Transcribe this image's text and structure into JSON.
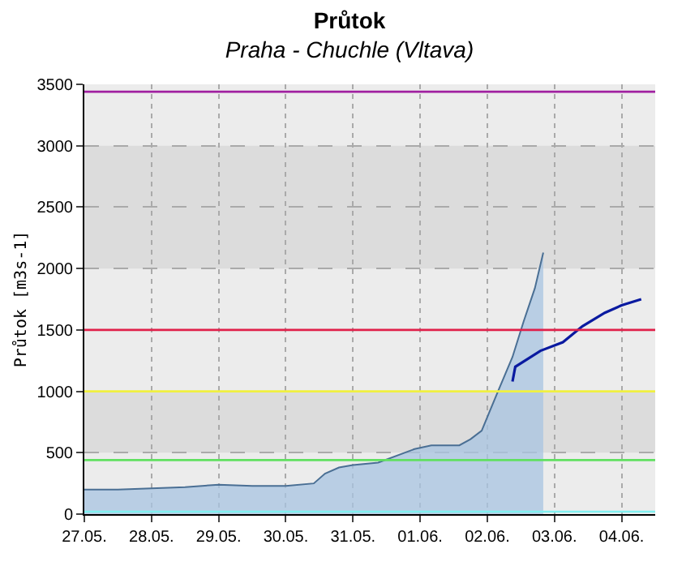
{
  "chart_data": {
    "type": "area",
    "title": "Průtok",
    "subtitle": "Praha - Chuchle (Vltava)",
    "ylabel": "Průtok [m3s-1]",
    "xlim": [
      "--05-27",
      "--06-04T12:00"
    ],
    "ylim": [
      0,
      3500
    ],
    "xticks": [
      {
        "value": "--05-27",
        "label": "27.05."
      },
      {
        "value": "--05-28",
        "label": "28.05."
      },
      {
        "value": "--05-29",
        "label": "29.05."
      },
      {
        "value": "--05-30",
        "label": "30.05."
      },
      {
        "value": "--05-31",
        "label": "31.05."
      },
      {
        "value": "--06-01",
        "label": "01.06."
      },
      {
        "value": "--06-02",
        "label": "02.06."
      },
      {
        "value": "--06-03",
        "label": "03.06."
      },
      {
        "value": "--06-04",
        "label": "04.06."
      }
    ],
    "yticks": [
      0,
      500,
      1000,
      1500,
      2000,
      2500,
      3000,
      3500
    ],
    "grid": true,
    "bands": [
      {
        "axis": "y",
        "from": 500,
        "to": 1000,
        "color": "#dcdcdc"
      },
      {
        "axis": "y",
        "from": 2000,
        "to": 3000,
        "color": "#dcdcdc"
      }
    ],
    "ref_lines": [
      {
        "axis": "y",
        "value": 3440,
        "color": "#a020a0"
      },
      {
        "axis": "y",
        "value": 1500,
        "color": "#e0204a"
      },
      {
        "axis": "y",
        "value": 1000,
        "color": "#f0f040"
      },
      {
        "axis": "y",
        "value": 440,
        "color": "#60e060"
      },
      {
        "axis": "y",
        "value": 20,
        "color": "#80f0f0"
      }
    ],
    "series": [
      {
        "color": "#4a6f94",
        "x": [
          "--05-27T00:00",
          "--05-27T12:00",
          "--05-28T00:00",
          "--05-28T12:00",
          "--05-29T00:00",
          "--05-29T12:00",
          "--05-30T00:00",
          "--05-30T10:00",
          "--05-30T14:00",
          "--05-30T19:00",
          "--05-31T00:00",
          "--05-31T09:00",
          "--05-31T22:00",
          "--06-01T04:00",
          "--06-01T14:00",
          "--06-01T18:00",
          "--06-01T22:00",
          "--06-02T04:00",
          "--06-02T09:00",
          "--06-02T13:00",
          "--06-02T17:00",
          "--06-02T20:00"
        ],
        "values": [
          200,
          200,
          210,
          220,
          240,
          230,
          230,
          250,
          330,
          380,
          400,
          420,
          530,
          560,
          560,
          610,
          680,
          1010,
          1280,
          1570,
          1840,
          2130
        ]
      },
      {
        "type": "line",
        "color": "#0a1aa0",
        "x": [
          "--06-02T09:00",
          "--06-02T10:00",
          "--06-02T19:00",
          "--06-03T03:00",
          "--06-03T10:00",
          "--06-03T18:00",
          "--06-04T00:00",
          "--06-04T07:00"
        ],
        "values": [
          1080,
          1200,
          1330,
          1400,
          1530,
          1640,
          1700,
          1750
        ]
      }
    ]
  }
}
